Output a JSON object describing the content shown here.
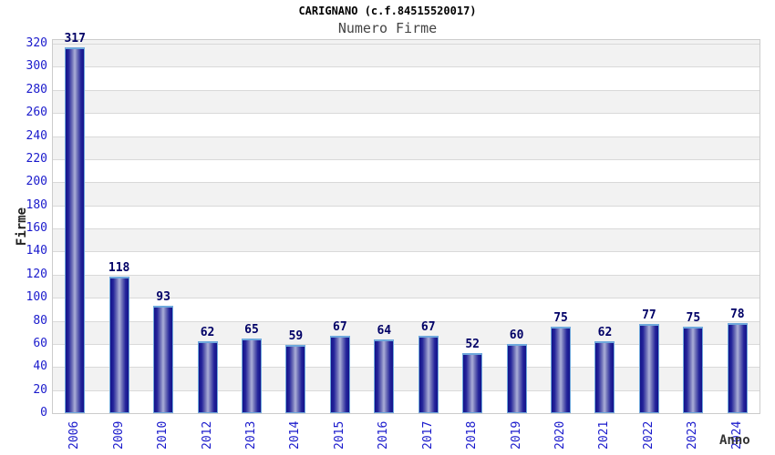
{
  "title": "CARIGNANO (c.f.84515520017)",
  "subtitle": "Numero Firme",
  "chart_data": {
    "type": "bar",
    "title": "CARIGNANO (c.f.84515520017)",
    "subtitle": "Numero Firme",
    "categories": [
      "2006",
      "2009",
      "2010",
      "2012",
      "2013",
      "2014",
      "2015",
      "2016",
      "2017",
      "2018",
      "2019",
      "2020",
      "2021",
      "2022",
      "2023",
      "2024"
    ],
    "values": [
      317,
      118,
      93,
      62,
      65,
      59,
      67,
      64,
      67,
      52,
      60,
      75,
      62,
      77,
      75,
      78
    ],
    "xlabel": "Anno",
    "ylabel": "Firme",
    "ylim": [
      0,
      320
    ],
    "ytick_step": 20,
    "grid": "horizontal-only",
    "legend": "none",
    "value_labels": true,
    "bands": "alternating-horizontal"
  },
  "colors": {
    "tick_label": "#1a1acc",
    "value_label": "#000066",
    "bar_edge": "#14148a",
    "bar_mid": "#abaed8",
    "bar_cap_border": "#6fa8dc",
    "band_gray": "#f2f2f2",
    "band_white": "#ffffff",
    "gridline": "#d9d9d9",
    "plot_border": "#cccccc",
    "title_color": "#000000",
    "subtitle_color": "#444444",
    "axis_caption_color": "#222222"
  }
}
